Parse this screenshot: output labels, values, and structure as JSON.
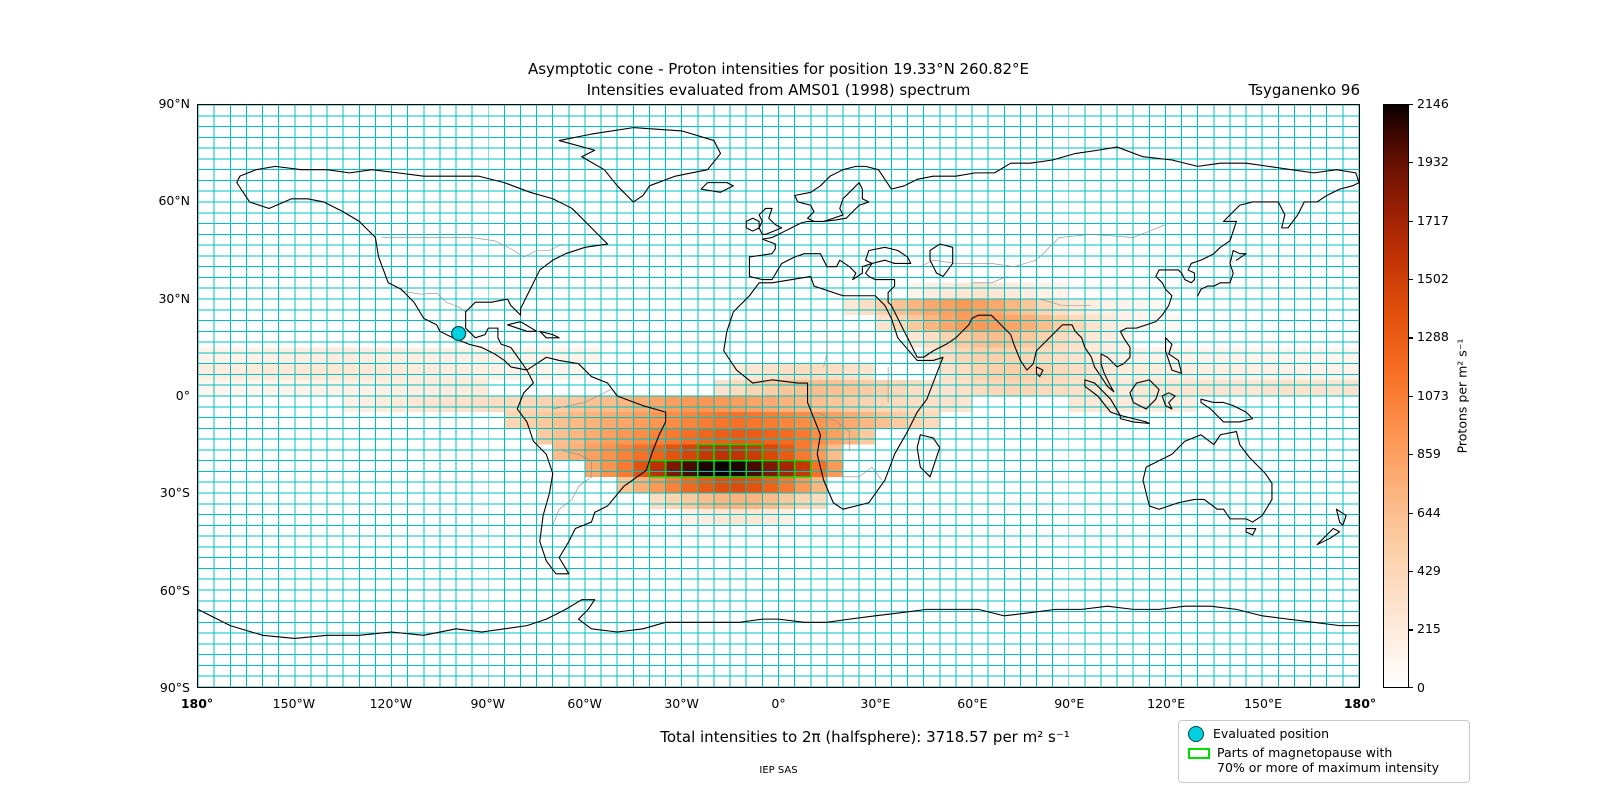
{
  "header": {
    "title_line1": "Asymptotic cone - Proton intensities for position 19.33°N 260.82°E",
    "title_line2": "Intensities evaluated from AMS01 (1998) spectrum",
    "model_label": "Tsyganenko 96"
  },
  "axes": {
    "x_ticks": [
      {
        "value": -180,
        "label": "180°",
        "bold": true
      },
      {
        "value": -150,
        "label": "150°W",
        "bold": false
      },
      {
        "value": -120,
        "label": "120°W",
        "bold": false
      },
      {
        "value": -90,
        "label": "90°W",
        "bold": false
      },
      {
        "value": -60,
        "label": "60°W",
        "bold": false
      },
      {
        "value": -30,
        "label": "30°W",
        "bold": false
      },
      {
        "value": 0,
        "label": "0°",
        "bold": false
      },
      {
        "value": 30,
        "label": "30°E",
        "bold": false
      },
      {
        "value": 60,
        "label": "60°E",
        "bold": false
      },
      {
        "value": 90,
        "label": "90°E",
        "bold": false
      },
      {
        "value": 120,
        "label": "120°E",
        "bold": false
      },
      {
        "value": 150,
        "label": "150°E",
        "bold": false
      },
      {
        "value": 180,
        "label": "180°",
        "bold": true
      }
    ],
    "y_ticks": [
      {
        "value": 90,
        "label": "90°N"
      },
      {
        "value": 60,
        "label": "60°N"
      },
      {
        "value": 30,
        "label": "30°N"
      },
      {
        "value": 0,
        "label": "0°"
      },
      {
        "value": -30,
        "label": "30°S"
      },
      {
        "value": -60,
        "label": "60°S"
      },
      {
        "value": -90,
        "label": "90°S"
      }
    ]
  },
  "colorbar": {
    "label": "Protons per m² s⁻¹",
    "ticks": [
      2146,
      1932,
      1717,
      1502,
      1288,
      1073,
      859,
      644,
      429,
      215,
      0
    ],
    "max": 2146
  },
  "legend": {
    "evaluated_label": "Evaluated position",
    "magnetopause_line1": "Parts of magnetopause with",
    "magnetopause_line2": "70% or more of maximum intensity"
  },
  "footer": {
    "total_line": "Total intensities to 2π (halfsphere): 3718.57 per m² s⁻¹",
    "credit": "IEP SAS"
  },
  "chart_data": {
    "type": "heatmap",
    "title": "Asymptotic cone - Proton intensities for position 19.33°N 260.82°E",
    "subtitle": "Intensities evaluated from AMS01 (1998) spectrum",
    "field_model": "Tsyganenko 96",
    "spectrum": "AMS01 (1998)",
    "total_intensity_halfsphere": 3718.57,
    "xlabel_ticks_deg": [
      -180,
      -150,
      -120,
      -90,
      -60,
      -30,
      0,
      30,
      60,
      90,
      120,
      150,
      180
    ],
    "ylabel_ticks_deg": [
      90,
      60,
      30,
      0,
      -30,
      -60,
      -90
    ],
    "x_range": [
      -180,
      180
    ],
    "y_range": [
      -90,
      90
    ],
    "cell_size_deg": 5,
    "max_value": 2146,
    "value_unit": "Protons per m² s⁻¹",
    "grid_lon_step": 5,
    "grid_lat_step": 3.333,
    "grid_color": "#00bfbf",
    "magnetopause_threshold": 0.7,
    "magnetopause_color": "#00dd00",
    "marker_color": "#00cfe0",
    "evaluated_position": {
      "lat": 19.33,
      "lon": 260.82
    },
    "colormap_stops": [
      [
        0.0,
        "#ffffff"
      ],
      [
        0.06,
        "#fff3ea"
      ],
      [
        0.14,
        "#fde3cd"
      ],
      [
        0.24,
        "#fccfa8"
      ],
      [
        0.34,
        "#fcb27c"
      ],
      [
        0.44,
        "#fc934e"
      ],
      [
        0.54,
        "#f76f24"
      ],
      [
        0.64,
        "#e2500b"
      ],
      [
        0.74,
        "#c03205"
      ],
      [
        0.82,
        "#981f04"
      ],
      [
        0.89,
        "#6d1202"
      ],
      [
        0.95,
        "#3c0701"
      ],
      [
        1.0,
        "#0a0000"
      ]
    ],
    "rows": [
      {
        "lat": 30,
        "start": 40,
        "values": [
          140,
          180,
          220,
          260,
          280,
          260,
          220,
          180,
          150,
          130
        ]
      },
      {
        "lat": 25,
        "start": 20,
        "values": [
          250,
          350,
          480,
          620,
          720,
          800,
          860,
          900,
          860,
          800,
          700,
          580,
          440,
          330,
          240,
          170
        ]
      },
      {
        "lat": 25,
        "start": 100,
        "values": [
          140,
          120,
          100,
          90
        ]
      },
      {
        "lat": 20,
        "start": 30,
        "values": [
          300,
          420,
          560,
          700,
          810,
          880,
          900,
          870,
          820,
          750,
          650,
          540,
          420,
          300,
          210,
          150
        ]
      },
      {
        "lat": 20,
        "start": 110,
        "values": [
          120,
          100,
          90
        ]
      },
      {
        "lat": 15,
        "start": 40,
        "values": [
          260,
          360,
          460,
          560,
          620,
          650,
          620,
          560,
          480,
          400,
          320,
          250,
          190,
          140
        ]
      },
      {
        "lat": 10,
        "start": -180,
        "values": [
          120,
          130,
          140,
          150,
          160,
          170,
          180,
          190,
          200,
          200,
          190,
          185,
          180,
          170,
          165,
          160,
          155,
          150,
          145,
          140,
          135,
          130,
          125,
          120,
          115
        ]
      },
      {
        "lat": 10,
        "start": 45,
        "values": [
          250,
          350,
          430,
          480,
          500,
          480,
          440,
          390,
          340,
          290,
          240,
          190,
          150
        ]
      },
      {
        "lat": 10,
        "start": 110,
        "values": [
          145,
          140,
          135,
          130,
          125,
          120,
          115,
          110,
          108,
          106,
          104,
          102,
          100,
          100
        ]
      },
      {
        "lat": 5,
        "start": -180,
        "values": [
          180,
          190,
          200,
          210,
          220,
          230,
          240,
          250,
          250,
          245,
          235,
          225,
          215,
          205,
          195,
          185,
          175,
          165,
          155,
          145,
          135,
          125,
          115,
          105
        ]
      },
      {
        "lat": 5,
        "start": -15,
        "values": [
          210,
          260,
          310,
          350,
          380,
          375,
          350,
          320,
          295
        ]
      },
      {
        "lat": 5,
        "start": 50,
        "values": [
          310,
          380,
          450,
          505,
          520,
          500,
          460,
          405,
          350,
          300,
          250,
          205
        ]
      },
      {
        "lat": 5,
        "start": 110,
        "values": [
          205,
          195,
          185,
          178,
          172,
          166,
          160,
          155,
          150,
          146,
          142,
          138,
          134,
          130
        ]
      },
      {
        "lat": 0,
        "start": -180,
        "values": [
          100,
          102,
          106,
          110,
          115,
          120,
          126,
          132,
          138,
          145,
          152,
          160,
          168,
          176,
          185,
          195,
          205,
          215
        ]
      },
      {
        "lat": 0,
        "start": -20,
        "values": [
          300,
          380,
          455,
          525,
          585,
          625,
          640,
          620,
          580,
          530,
          478,
          425,
          365,
          305
        ]
      },
      {
        "lat": 0,
        "start": 50,
        "values": [
          285,
          330,
          380,
          420,
          448,
          432,
          400,
          362,
          322,
          283,
          245,
          222
        ]
      },
      {
        "lat": 0,
        "start": 110,
        "values": [
          255,
          262,
          270,
          278,
          281,
          274,
          265,
          255,
          300,
          310,
          305,
          298,
          290,
          285
        ]
      },
      {
        "lat": -5,
        "start": -135,
        "values": [
          150,
          180,
          205,
          228,
          252,
          278,
          302,
          325,
          348,
          368,
          388
        ]
      },
      {
        "lat": -5,
        "start": -80,
        "values": [
          420,
          468,
          520,
          572,
          622,
          652
        ]
      },
      {
        "lat": -5,
        "start": -50,
        "values": [
          700,
          760,
          820,
          868,
          900,
          920,
          902,
          870,
          832,
          782,
          732,
          682,
          632,
          582
        ]
      },
      {
        "lat": -5,
        "start": 20,
        "values": [
          522,
          470,
          422,
          382,
          350,
          322,
          300,
          282
        ]
      },
      {
        "lat": -5,
        "start": 90,
        "values": [
          252,
          243,
          233,
          222,
          212,
          202,
          192,
          182
        ]
      },
      {
        "lat": -10,
        "start": -85,
        "values": [
          450,
          502,
          560,
          620,
          680,
          732,
          782,
          822
        ]
      },
      {
        "lat": -10,
        "start": -45,
        "values": [
          872,
          922,
          980,
          1030,
          1080,
          1122,
          1150,
          1122,
          1080,
          1030,
          980,
          922,
          862
        ]
      },
      {
        "lat": -10,
        "start": 20,
        "values": [
          782,
          700,
          622,
          542,
          462,
          400
        ]
      },
      {
        "lat": -15,
        "start": -75,
        "values": [
          552,
          622,
          700,
          780,
          852,
          922,
          982,
          1042
        ]
      },
      {
        "lat": -15,
        "start": -35,
        "values": [
          1102,
          1162,
          1222,
          1272,
          1300,
          1282,
          1242,
          1182,
          1102
        ]
      },
      {
        "lat": -15,
        "start": 10,
        "values": [
          982,
          852,
          702,
          562
        ]
      },
      {
        "lat": -20,
        "start": -70,
        "values": [
          652,
          752,
          852,
          952,
          1052
        ]
      },
      {
        "lat": -20,
        "start": -45,
        "values": [
          1152,
          1252,
          1352,
          1452,
          1552,
          1600,
          1582,
          1522,
          1432
        ]
      },
      {
        "lat": -20,
        "start": 0,
        "values": [
          1302,
          1102,
          882,
          652
        ]
      },
      {
        "lat": -25,
        "start": -60,
        "values": [
          802,
          952,
          1102
        ]
      },
      {
        "lat": -25,
        "start": -45,
        "values": [
          1352,
          1602,
          1852,
          2002,
          2102,
          2146,
          2102,
          2002,
          1852,
          1702,
          1552
        ]
      },
      {
        "lat": -25,
        "start": 10,
        "values": [
          1152,
          902
        ]
      },
      {
        "lat": -30,
        "start": -50,
        "values": [
          602,
          752,
          902,
          1052,
          1202,
          1302,
          1382,
          1402,
          1352,
          1252,
          1102,
          902,
          702
        ]
      },
      {
        "lat": -35,
        "start": -40,
        "values": [
          352,
          452,
          552,
          652,
          702,
          722,
          702,
          652,
          562,
          462,
          362
        ]
      },
      {
        "lat": -40,
        "start": -30,
        "values": [
          152,
          202,
          252,
          282,
          262,
          222,
          172
        ]
      }
    ]
  }
}
